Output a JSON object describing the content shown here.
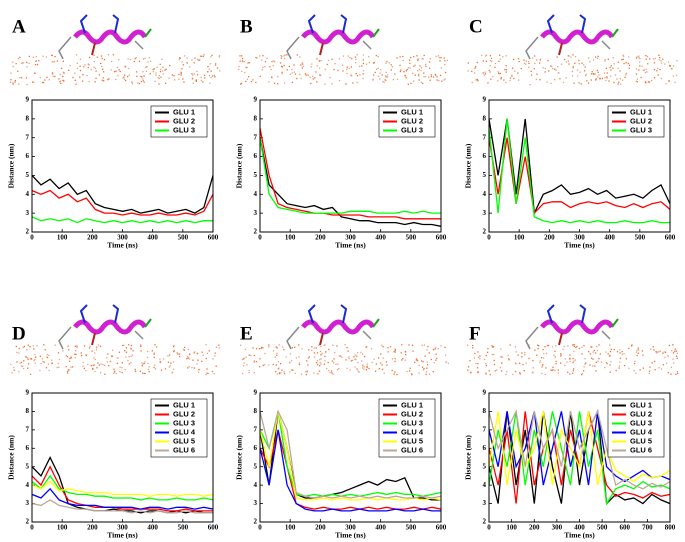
{
  "chart_data": [
    {
      "type": "line",
      "panel": "A",
      "xlabel": "Time (ns)",
      "ylabel": "Distance (nm)",
      "xlim": [
        0,
        600
      ],
      "ylim": [
        2,
        9
      ],
      "xticks": [
        0,
        100,
        200,
        300,
        400,
        500,
        600
      ],
      "yticks": [
        2,
        3,
        4,
        5,
        6,
        7,
        8,
        9
      ],
      "x": [
        0,
        30,
        60,
        90,
        120,
        150,
        180,
        210,
        240,
        270,
        300,
        330,
        360,
        390,
        420,
        450,
        480,
        510,
        540,
        570,
        600
      ],
      "series": [
        {
          "name": "GLU 1",
          "color": "#000000",
          "values": [
            5.0,
            4.5,
            4.8,
            4.3,
            4.6,
            4.0,
            4.2,
            3.5,
            3.3,
            3.2,
            3.1,
            3.2,
            3.0,
            3.1,
            3.2,
            3.0,
            3.1,
            3.2,
            3.0,
            3.3,
            5.0
          ]
        },
        {
          "name": "GLU 2",
          "color": "#ff0000",
          "values": [
            4.2,
            4.0,
            4.2,
            3.8,
            4.0,
            3.6,
            3.8,
            3.2,
            3.0,
            3.0,
            2.9,
            3.0,
            2.9,
            2.9,
            3.0,
            2.9,
            2.9,
            3.0,
            2.9,
            3.1,
            4.0
          ]
        },
        {
          "name": "GLU 3",
          "color": "#00ff00",
          "values": [
            2.8,
            2.6,
            2.7,
            2.6,
            2.7,
            2.5,
            2.7,
            2.6,
            2.5,
            2.6,
            2.5,
            2.6,
            2.5,
            2.6,
            2.5,
            2.6,
            2.5,
            2.6,
            2.5,
            2.6,
            2.6
          ]
        }
      ]
    },
    {
      "type": "line",
      "panel": "B",
      "xlabel": "Time (ns)",
      "ylabel": "Distance (nm)",
      "xlim": [
        0,
        600
      ],
      "ylim": [
        2,
        9
      ],
      "xticks": [
        0,
        100,
        200,
        300,
        400,
        500,
        600
      ],
      "yticks": [
        2,
        3,
        4,
        5,
        6,
        7,
        8,
        9
      ],
      "x": [
        0,
        30,
        60,
        90,
        120,
        150,
        180,
        210,
        240,
        270,
        300,
        330,
        360,
        390,
        420,
        450,
        480,
        510,
        540,
        570,
        600
      ],
      "series": [
        {
          "name": "GLU 1",
          "color": "#000000",
          "values": [
            7.0,
            4.5,
            4.0,
            3.5,
            3.4,
            3.3,
            3.4,
            3.2,
            3.3,
            2.8,
            2.7,
            2.6,
            2.6,
            2.5,
            2.5,
            2.5,
            2.4,
            2.5,
            2.4,
            2.4,
            2.3
          ]
        },
        {
          "name": "GLU 2",
          "color": "#ff0000",
          "values": [
            7.5,
            5.0,
            3.5,
            3.3,
            3.2,
            3.1,
            3.0,
            3.0,
            2.9,
            2.9,
            2.9,
            2.9,
            2.8,
            2.8,
            2.8,
            2.8,
            2.7,
            2.7,
            2.7,
            2.7,
            2.7
          ]
        },
        {
          "name": "GLU 3",
          "color": "#00ff00",
          "values": [
            7.0,
            4.0,
            3.3,
            3.2,
            3.1,
            3.0,
            3.0,
            3.0,
            3.0,
            3.0,
            3.1,
            3.1,
            3.1,
            3.0,
            3.0,
            3.0,
            3.1,
            3.0,
            3.1,
            3.0,
            3.0
          ]
        }
      ]
    },
    {
      "type": "line",
      "panel": "C",
      "xlabel": "Time (ns)",
      "ylabel": "Distance (nm)",
      "xlim": [
        0,
        600
      ],
      "ylim": [
        2,
        9
      ],
      "xticks": [
        0,
        100,
        200,
        300,
        400,
        500,
        600
      ],
      "yticks": [
        2,
        3,
        4,
        5,
        6,
        7,
        8,
        9
      ],
      "x": [
        0,
        30,
        60,
        90,
        120,
        150,
        180,
        210,
        240,
        270,
        300,
        330,
        360,
        390,
        420,
        450,
        480,
        510,
        540,
        570,
        600
      ],
      "series": [
        {
          "name": "GLU 1",
          "color": "#000000",
          "values": [
            8,
            5,
            8,
            4,
            8,
            3,
            4,
            4.2,
            4.5,
            4.0,
            4.1,
            4.3,
            4.0,
            4.2,
            3.8,
            3.9,
            4.0,
            3.8,
            4.2,
            4.5,
            3.5
          ]
        },
        {
          "name": "GLU 2",
          "color": "#ff0000",
          "values": [
            7,
            4,
            7,
            3.5,
            6,
            3,
            3.5,
            3.6,
            3.6,
            3.3,
            3.5,
            3.6,
            3.5,
            3.6,
            3.4,
            3.3,
            3.5,
            3.3,
            3.5,
            3.6,
            3.2
          ]
        },
        {
          "name": "GLU 3",
          "color": "#00ff00",
          "values": [
            7.5,
            3,
            8,
            3.5,
            7,
            2.8,
            2.6,
            2.5,
            2.6,
            2.5,
            2.6,
            2.5,
            2.6,
            2.5,
            2.5,
            2.6,
            2.5,
            2.5,
            2.6,
            2.5,
            2.5
          ]
        }
      ]
    },
    {
      "type": "line",
      "panel": "D",
      "xlabel": "Time (ns)",
      "ylabel": "Distance (nm)",
      "xlim": [
        0,
        600
      ],
      "ylim": [
        2,
        9
      ],
      "xticks": [
        0,
        100,
        200,
        300,
        400,
        500,
        600
      ],
      "yticks": [
        2,
        3,
        4,
        5,
        6,
        7,
        8,
        9
      ],
      "x": [
        0,
        30,
        60,
        90,
        120,
        150,
        180,
        210,
        240,
        270,
        300,
        330,
        360,
        390,
        420,
        450,
        480,
        510,
        540,
        570,
        600
      ],
      "series": [
        {
          "name": "GLU 1",
          "color": "#000000",
          "values": [
            5,
            4.5,
            5.5,
            4.5,
            3,
            2.8,
            2.7,
            2.6,
            2.6,
            2.7,
            2.6,
            2.6,
            2.5,
            2.6,
            2.6,
            2.5,
            2.6,
            2.5,
            2.6,
            2.5,
            2.5
          ]
        },
        {
          "name": "GLU 2",
          "color": "#ff0000",
          "values": [
            4.5,
            4,
            5,
            4,
            3.2,
            3,
            2.9,
            2.8,
            2.8,
            2.8,
            2.7,
            2.7,
            2.7,
            2.7,
            2.7,
            2.6,
            2.6,
            2.7,
            2.6,
            2.6,
            2.6
          ]
        },
        {
          "name": "GLU 3",
          "color": "#00ff00",
          "values": [
            4.2,
            3.8,
            4.5,
            3.8,
            3.6,
            3.5,
            3.5,
            3.4,
            3.4,
            3.3,
            3.3,
            3.3,
            3.2,
            3.3,
            3.2,
            3.2,
            3.3,
            3.2,
            3.2,
            3.3,
            3.2
          ]
        },
        {
          "name": "GLU 4",
          "color": "#0000ff",
          "values": [
            3.5,
            3.3,
            3.8,
            3.2,
            3.0,
            2.9,
            2.9,
            2.9,
            2.8,
            2.8,
            2.8,
            2.8,
            2.7,
            2.8,
            2.8,
            2.7,
            2.8,
            2.8,
            2.7,
            2.8,
            2.7
          ]
        },
        {
          "name": "GLU 5",
          "color": "#ffff00",
          "values": [
            4,
            3.8,
            4.2,
            3.7,
            3.8,
            3.7,
            3.6,
            3.6,
            3.6,
            3.5,
            3.5,
            3.5,
            3.5,
            3.4,
            3.5,
            3.5,
            3.4,
            3.5,
            3.5,
            3.4,
            3.5
          ]
        },
        {
          "name": "GLU 6",
          "color": "#bca89a",
          "values": [
            3,
            2.9,
            3.2,
            2.9,
            2.8,
            2.7,
            2.7,
            2.6,
            2.6,
            2.6,
            2.6,
            2.5,
            2.6,
            2.5,
            2.6,
            2.5,
            2.5,
            2.6,
            2.5,
            2.5,
            2.5
          ]
        }
      ]
    },
    {
      "type": "line",
      "panel": "E",
      "xlabel": "Time (ns)",
      "ylabel": "Distance (nm)",
      "xlim": [
        0,
        600
      ],
      "ylim": [
        2,
        9
      ],
      "xticks": [
        0,
        100,
        200,
        300,
        400,
        500,
        600
      ],
      "yticks": [
        2,
        3,
        4,
        5,
        6,
        7,
        8,
        9
      ],
      "x": [
        0,
        30,
        60,
        90,
        120,
        150,
        180,
        210,
        240,
        270,
        300,
        330,
        360,
        390,
        420,
        450,
        480,
        510,
        540,
        570,
        600
      ],
      "series": [
        {
          "name": "GLU 1",
          "color": "#000000",
          "values": [
            7,
            4,
            8,
            6,
            3.5,
            3.3,
            3.3,
            3.4,
            3.5,
            3.6,
            3.8,
            4.0,
            4.2,
            4.0,
            4.3,
            4.2,
            4.4,
            3.3,
            3.3,
            3.2,
            3.2
          ]
        },
        {
          "name": "GLU 2",
          "color": "#ff0000",
          "values": [
            6,
            5,
            7,
            5,
            3,
            2.8,
            2.7,
            2.8,
            2.7,
            2.7,
            2.8,
            2.7,
            2.8,
            2.7,
            2.8,
            2.7,
            2.7,
            2.8,
            2.7,
            2.8,
            2.7
          ]
        },
        {
          "name": "GLU 3",
          "color": "#00ff00",
          "values": [
            7,
            6,
            8,
            5,
            3.5,
            3.4,
            3.5,
            3.4,
            3.5,
            3.4,
            3.5,
            3.4,
            3.5,
            3.6,
            3.5,
            3.6,
            3.5,
            3.5,
            3.4,
            3.5,
            3.6
          ]
        },
        {
          "name": "GLU 4",
          "color": "#0000ff",
          "values": [
            6,
            4,
            7,
            4,
            3,
            2.7,
            2.6,
            2.6,
            2.7,
            2.6,
            2.6,
            2.7,
            2.6,
            2.6,
            2.6,
            2.7,
            2.6,
            2.6,
            2.7,
            2.6,
            2.6
          ]
        },
        {
          "name": "GLU 5",
          "color": "#ffff00",
          "values": [
            7,
            5,
            8,
            6,
            3.3,
            3.2,
            3.2,
            3.3,
            3.2,
            3.3,
            3.2,
            3.2,
            3.3,
            3.2,
            3.3,
            3.2,
            3.2,
            3.3,
            3.2,
            3.3,
            3.2
          ]
        },
        {
          "name": "GLU 6",
          "color": "#bca89a",
          "values": [
            8,
            6,
            8,
            7,
            3.6,
            3.4,
            3.3,
            3.4,
            3.3,
            3.4,
            3.3,
            3.4,
            3.3,
            3.4,
            3.3,
            3.4,
            3.3,
            3.3,
            3.4,
            3.3,
            3.4
          ]
        }
      ]
    },
    {
      "type": "line",
      "panel": "F",
      "xlabel": "Time (ns)",
      "ylabel": "Distance (nm)",
      "xlim": [
        0,
        800
      ],
      "ylim": [
        2,
        9
      ],
      "xticks": [
        0,
        100,
        200,
        300,
        400,
        500,
        600,
        700,
        800
      ],
      "yticks": [
        2,
        3,
        4,
        5,
        6,
        7,
        8,
        9
      ],
      "x": [
        0,
        40,
        80,
        120,
        160,
        200,
        240,
        280,
        320,
        360,
        400,
        440,
        480,
        520,
        560,
        600,
        640,
        680,
        720,
        760,
        800
      ],
      "series": [
        {
          "name": "GLU 1",
          "color": "#000000",
          "values": [
            5,
            3,
            8,
            4,
            7,
            3,
            8,
            5,
            3,
            8,
            4,
            7,
            8,
            3,
            3.5,
            3.2,
            3.3,
            3.0,
            3.5,
            3.2,
            3.0
          ]
        },
        {
          "name": "GLU 2",
          "color": "#ff0000",
          "values": [
            6,
            4,
            7,
            3,
            8,
            4,
            6,
            7,
            4,
            7,
            5,
            8,
            6,
            4,
            3.4,
            3.6,
            3.5,
            3.3,
            3.6,
            3.4,
            3.5
          ]
        },
        {
          "name": "GLU 3",
          "color": "#00ff00",
          "values": [
            4,
            7,
            5,
            8,
            4,
            7,
            5,
            8,
            6,
            4,
            8,
            5,
            7,
            3,
            3.8,
            4.0,
            3.8,
            4.2,
            3.9,
            4.0,
            3.8
          ]
        },
        {
          "name": "GLU 4",
          "color": "#0000ff",
          "values": [
            7,
            5,
            8,
            5,
            6,
            8,
            4,
            6,
            8,
            5,
            7,
            4,
            8,
            5,
            4.5,
            4.2,
            4.5,
            4.8,
            4.4,
            4.5,
            4.3
          ]
        },
        {
          "name": "GLU 5",
          "color": "#ffff00",
          "values": [
            5,
            8,
            4,
            7,
            5,
            6,
            8,
            4,
            7,
            6,
            5,
            8,
            4,
            6,
            4.8,
            4.5,
            4.2,
            4.6,
            4.4,
            4.5,
            4.8
          ]
        },
        {
          "name": "GLU 6",
          "color": "#bca89a",
          "values": [
            8,
            6,
            7,
            8,
            5,
            8,
            6,
            7,
            5,
            8,
            6,
            7,
            8,
            6,
            4.0,
            4.3,
            4.0,
            3.8,
            4.1,
            3.9,
            4.2
          ]
        }
      ]
    }
  ]
}
